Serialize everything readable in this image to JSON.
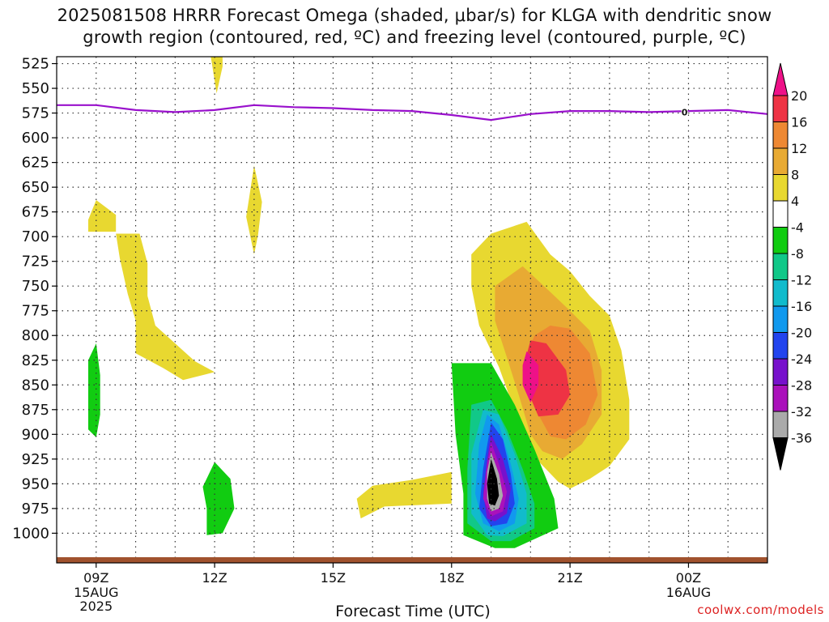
{
  "title": {
    "line1": "2025081508 HRRR Forecast Omega (shaded, μbar/s) for KLGA with dendritic snow",
    "line2": "growth region (contoured, red, ºC) and freezing level (contoured, purple, ºC)"
  },
  "credit": "coolwx.com/models",
  "chart_data": {
    "type": "time-height contour",
    "xlabel": "Forecast Time (UTC)",
    "ylabel": "",
    "x_ticks": [
      {
        "hour": 9,
        "label": "09Z",
        "sub": [
          "15AUG",
          "2025"
        ]
      },
      {
        "hour": 12,
        "label": "12Z",
        "sub": []
      },
      {
        "hour": 15,
        "label": "15Z",
        "sub": []
      },
      {
        "hour": 18,
        "label": "18Z",
        "sub": []
      },
      {
        "hour": 21,
        "label": "21Z",
        "sub": []
      },
      {
        "hour": 24,
        "label": "00Z",
        "sub": [
          "16AUG"
        ]
      }
    ],
    "xlim": [
      8,
      26
    ],
    "y_ticks": [
      525,
      550,
      575,
      600,
      625,
      650,
      675,
      700,
      725,
      750,
      775,
      800,
      825,
      850,
      875,
      900,
      925,
      950,
      975,
      1000
    ],
    "ylim": [
      1030,
      518
    ],
    "colorbar": {
      "levels": [
        {
          "from": 20,
          "to": null,
          "color": "#ee1188"
        },
        {
          "from": 16,
          "to": 20,
          "color": "#ee3344"
        },
        {
          "from": 12,
          "to": 16,
          "color": "#ee8833"
        },
        {
          "from": 8,
          "to": 12,
          "color": "#e8aa33"
        },
        {
          "from": 4,
          "to": 8,
          "color": "#e8d830"
        },
        {
          "from": -4,
          "to": 4,
          "color": "#ffffff"
        },
        {
          "from": -8,
          "to": -4,
          "color": "#11cc11"
        },
        {
          "from": -12,
          "to": -8,
          "color": "#11c888"
        },
        {
          "from": -16,
          "to": -12,
          "color": "#11bbcc"
        },
        {
          "from": -20,
          "to": -16,
          "color": "#1199ee"
        },
        {
          "from": -24,
          "to": -20,
          "color": "#2244ee"
        },
        {
          "from": -28,
          "to": -24,
          "color": "#7711cc"
        },
        {
          "from": -32,
          "to": -28,
          "color": "#aa11bb"
        },
        {
          "from": -36,
          "to": -32,
          "color": "#aaaaaa"
        },
        {
          "from": null,
          "to": -36,
          "color": "#000000"
        }
      ],
      "tick_labels": [
        "20",
        "16",
        "12",
        "8",
        "4",
        "-4",
        "-8",
        "-12",
        "-16",
        "-20",
        "-24",
        "-28",
        "-32",
        "-36"
      ]
    },
    "freezing_level": {
      "color": "#9911cc",
      "label": "0",
      "label_at_hour": 23.9,
      "points": [
        [
          8,
          567
        ],
        [
          9,
          567
        ],
        [
          10,
          572
        ],
        [
          11,
          574
        ],
        [
          12,
          572
        ],
        [
          13,
          567
        ],
        [
          14,
          569
        ],
        [
          15,
          570
        ],
        [
          16,
          572
        ],
        [
          17,
          573
        ],
        [
          18,
          577
        ],
        [
          19,
          582
        ],
        [
          20,
          576
        ],
        [
          21,
          573
        ],
        [
          22,
          573
        ],
        [
          23,
          574
        ],
        [
          24,
          573
        ],
        [
          25,
          572
        ],
        [
          26,
          576
        ]
      ]
    },
    "ground_color": "#a0522d",
    "omega_regions": [
      {
        "value": 4,
        "color": "#e8d830",
        "points": [
          [
            11.9,
            517
          ],
          [
            12.2,
            517
          ],
          [
            12.2,
            528
          ],
          [
            12.05,
            555
          ]
        ]
      },
      {
        "value": 4,
        "color": "#e8d830",
        "points": [
          [
            9.0,
            663
          ],
          [
            9.5,
            678
          ],
          [
            9.5,
            695
          ],
          [
            8.8,
            695
          ],
          [
            8.8,
            683
          ]
        ]
      },
      {
        "value": 4,
        "color": "#e8d830",
        "points": [
          [
            13.0,
            628
          ],
          [
            13.2,
            665
          ],
          [
            13.1,
            698
          ],
          [
            13.0,
            718
          ],
          [
            12.8,
            680
          ]
        ]
      },
      {
        "value": 4,
        "color": "#e8d830",
        "points": [
          [
            9.5,
            697
          ],
          [
            10.1,
            697
          ],
          [
            10.3,
            727
          ],
          [
            10.3,
            760
          ],
          [
            10.5,
            790
          ],
          [
            11.0,
            808
          ],
          [
            11.5,
            826
          ],
          [
            12.0,
            837
          ],
          [
            11.2,
            845
          ],
          [
            10.7,
            833
          ],
          [
            10.0,
            818
          ],
          [
            10.0,
            785
          ],
          [
            9.8,
            758
          ],
          [
            9.6,
            722
          ]
        ]
      },
      {
        "value": 4,
        "color": "#e8d830",
        "points": [
          [
            18.0,
            938
          ],
          [
            18.0,
            970
          ],
          [
            16.3,
            973
          ],
          [
            15.7,
            985
          ],
          [
            15.6,
            965
          ],
          [
            16.0,
            952
          ],
          [
            17.0,
            946
          ]
        ]
      },
      {
        "value": 4,
        "color": "#e8d830",
        "points": [
          [
            19.9,
            685
          ],
          [
            20.5,
            718
          ],
          [
            21.0,
            735
          ],
          [
            21.5,
            760
          ],
          [
            22.0,
            780
          ],
          [
            22.3,
            815
          ],
          [
            22.5,
            865
          ],
          [
            22.5,
            905
          ],
          [
            22.0,
            932
          ],
          [
            21.5,
            945
          ],
          [
            21.0,
            955
          ],
          [
            20.7,
            948
          ],
          [
            20.1,
            923
          ],
          [
            19.8,
            900
          ],
          [
            19.5,
            865
          ],
          [
            19.2,
            832
          ],
          [
            18.7,
            790
          ],
          [
            18.5,
            750
          ],
          [
            18.5,
            718
          ],
          [
            19.0,
            697
          ]
        ]
      },
      {
        "value": 8,
        "color": "#e8aa33",
        "points": [
          [
            19.8,
            730
          ],
          [
            20.5,
            756
          ],
          [
            21.0,
            775
          ],
          [
            21.5,
            795
          ],
          [
            21.8,
            835
          ],
          [
            21.8,
            880
          ],
          [
            21.3,
            910
          ],
          [
            20.8,
            925
          ],
          [
            20.3,
            917
          ],
          [
            20.0,
            900
          ],
          [
            19.7,
            860
          ],
          [
            19.4,
            822
          ],
          [
            19.1,
            785
          ],
          [
            19.1,
            750
          ]
        ]
      },
      {
        "value": 12,
        "color": "#ee8833",
        "points": [
          [
            20.5,
            790
          ],
          [
            21.0,
            793
          ],
          [
            21.5,
            818
          ],
          [
            21.7,
            860
          ],
          [
            21.4,
            890
          ],
          [
            20.9,
            905
          ],
          [
            20.5,
            902
          ],
          [
            20.2,
            880
          ],
          [
            20.0,
            850
          ],
          [
            19.9,
            820
          ],
          [
            20.1,
            800
          ]
        ]
      },
      {
        "value": 16,
        "color": "#ee3344",
        "points": [
          [
            20.0,
            805
          ],
          [
            20.4,
            808
          ],
          [
            20.9,
            835
          ],
          [
            21.0,
            860
          ],
          [
            20.7,
            880
          ],
          [
            20.2,
            882
          ],
          [
            20.0,
            863
          ],
          [
            19.8,
            835
          ]
        ]
      },
      {
        "value": 20,
        "color": "#ee1188",
        "points": [
          [
            19.9,
            816
          ],
          [
            20.2,
            830
          ],
          [
            20.2,
            850
          ],
          [
            20.0,
            868
          ],
          [
            19.8,
            850
          ],
          [
            19.8,
            830
          ]
        ]
      },
      {
        "value": -4,
        "color": "#11cc11",
        "points": [
          [
            9.0,
            808
          ],
          [
            9.1,
            840
          ],
          [
            9.1,
            880
          ],
          [
            9.0,
            903
          ],
          [
            8.8,
            895
          ],
          [
            8.8,
            860
          ],
          [
            8.8,
            825
          ]
        ]
      },
      {
        "value": -4,
        "color": "#11cc11",
        "points": [
          [
            12.0,
            928
          ],
          [
            12.4,
            945
          ],
          [
            12.5,
            975
          ],
          [
            12.2,
            1000
          ],
          [
            11.8,
            1002
          ],
          [
            11.8,
            975
          ],
          [
            11.7,
            953
          ]
        ]
      },
      {
        "value": -4,
        "color": "#11cc11",
        "points": [
          [
            18.0,
            828
          ],
          [
            19.0,
            828
          ],
          [
            19.6,
            870
          ],
          [
            20.1,
            915
          ],
          [
            20.6,
            965
          ],
          [
            20.7,
            995
          ],
          [
            19.6,
            1015
          ],
          [
            19.1,
            1015
          ],
          [
            18.3,
            1002
          ],
          [
            18.3,
            960
          ],
          [
            18.1,
            900
          ]
        ]
      },
      {
        "value": -8,
        "color": "#11c888",
        "points": [
          [
            18.5,
            870
          ],
          [
            19.0,
            865
          ],
          [
            19.4,
            895
          ],
          [
            19.8,
            935
          ],
          [
            20.1,
            970
          ],
          [
            20.1,
            995
          ],
          [
            19.5,
            1008
          ],
          [
            19.0,
            1008
          ],
          [
            18.4,
            990
          ],
          [
            18.4,
            935
          ]
        ]
      },
      {
        "value": -12,
        "color": "#11bbcc",
        "points": [
          [
            18.8,
            875
          ],
          [
            19.2,
            880
          ],
          [
            19.6,
            920
          ],
          [
            19.9,
            960
          ],
          [
            19.9,
            990
          ],
          [
            19.3,
            1003
          ],
          [
            18.9,
            1002
          ],
          [
            18.5,
            980
          ],
          [
            18.5,
            920
          ]
        ]
      },
      {
        "value": -16,
        "color": "#1199ee",
        "points": [
          [
            18.9,
            880
          ],
          [
            19.2,
            890
          ],
          [
            19.5,
            930
          ],
          [
            19.7,
            965
          ],
          [
            19.6,
            990
          ],
          [
            19.2,
            998
          ],
          [
            18.8,
            990
          ],
          [
            18.6,
            960
          ],
          [
            18.7,
            910
          ]
        ]
      },
      {
        "value": -20,
        "color": "#2244ee",
        "points": [
          [
            19.0,
            888
          ],
          [
            19.3,
            905
          ],
          [
            19.5,
            940
          ],
          [
            19.6,
            970
          ],
          [
            19.4,
            990
          ],
          [
            19.0,
            993
          ],
          [
            18.7,
            975
          ],
          [
            18.8,
            935
          ]
        ]
      },
      {
        "value": -24,
        "color": "#7711cc",
        "points": [
          [
            19.0,
            900
          ],
          [
            19.3,
            925
          ],
          [
            19.5,
            955
          ],
          [
            19.4,
            980
          ],
          [
            19.1,
            988
          ],
          [
            18.9,
            985
          ],
          [
            18.8,
            960
          ],
          [
            18.9,
            925
          ]
        ]
      },
      {
        "value": -28,
        "color": "#aa11bb",
        "points": [
          [
            19.0,
            908
          ],
          [
            19.2,
            930
          ],
          [
            19.4,
            958
          ],
          [
            19.3,
            978
          ],
          [
            19.0,
            983
          ],
          [
            18.8,
            965
          ],
          [
            18.9,
            930
          ]
        ]
      },
      {
        "value": -32,
        "color": "#aaaaaa",
        "points": [
          [
            19.0,
            918
          ],
          [
            19.2,
            940
          ],
          [
            19.3,
            962
          ],
          [
            19.2,
            975
          ],
          [
            19.0,
            978
          ],
          [
            18.9,
            965
          ],
          [
            18.9,
            938
          ]
        ]
      },
      {
        "value": -36,
        "color": "#000000",
        "points": [
          [
            19.0,
            925
          ],
          [
            19.15,
            945
          ],
          [
            19.2,
            962
          ],
          [
            19.1,
            972
          ],
          [
            18.95,
            970
          ],
          [
            18.9,
            950
          ]
        ]
      }
    ]
  }
}
